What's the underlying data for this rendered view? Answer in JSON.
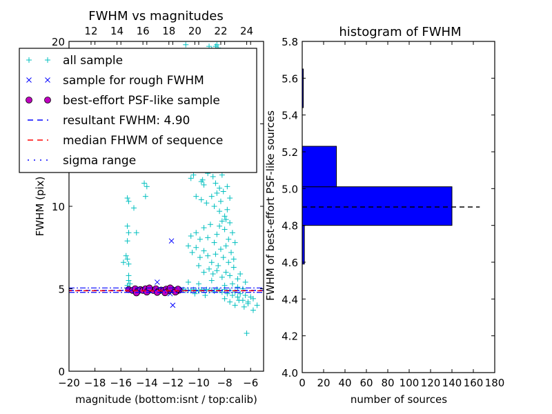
{
  "chart_data": [
    {
      "type": "scatter",
      "title": "FWHM vs magnitudes",
      "xlabel": "magnitude (bottom:isnt / top:calib)",
      "ylabel": "FWHM (pix)",
      "xlim": [
        -20,
        -5
      ],
      "ylim": [
        0,
        20
      ],
      "x_ticks": [
        -20,
        -18,
        -16,
        -14,
        -12,
        -10,
        -8,
        -6
      ],
      "x_tick_labels": [
        "−20",
        "−18",
        "−16",
        "−14",
        "−12",
        "−10",
        "−8",
        "−6"
      ],
      "y_ticks": [
        0,
        5,
        10,
        15,
        20
      ],
      "y_tick_labels": [
        "0",
        "5",
        "10",
        "",
        "20"
      ],
      "top_xlim": [
        10.3,
        25.3
      ],
      "top_x_ticks": [
        12,
        14,
        16,
        18,
        20,
        22,
        24
      ],
      "top_x_tick_labels": [
        "12",
        "14",
        "16",
        "18",
        "20",
        "22",
        "24"
      ],
      "legend_placement": "upper-left",
      "legend": [
        {
          "label": "all sample",
          "marker": "plus",
          "color": "#00bfbf"
        },
        {
          "label": "sample for rough FWHM",
          "marker": "x",
          "color": "#0000ff"
        },
        {
          "label": "best-effort PSF-like sample",
          "marker": "circle",
          "color": "#bf00bf"
        },
        {
          "label": "resultant FWHM: 4.90",
          "line": "dashed",
          "color": "#0000ff"
        },
        {
          "label": "median FHWM of sequence",
          "line": "dashed",
          "color": "#ff0000"
        },
        {
          "label": "sigma range",
          "line": "dashdot",
          "color": "#0000ff"
        }
      ],
      "resultant_fwhm": 4.9,
      "median_fwhm": 4.88,
      "sigma_range": [
        4.78,
        5.05
      ],
      "series": [
        {
          "name": "all sample",
          "points": [
            [
              -15.5,
              10.5
            ],
            [
              -15.4,
              10.3
            ],
            [
              -15.0,
              9.9
            ],
            [
              -14.2,
              11.4
            ],
            [
              -14.0,
              11.2
            ],
            [
              -14.1,
              10.6
            ],
            [
              -15.5,
              8.8
            ],
            [
              -15.4,
              8.4
            ],
            [
              -15.5,
              7.9
            ],
            [
              -14.8,
              8.4
            ],
            [
              -15.6,
              7.0
            ],
            [
              -15.5,
              6.8
            ],
            [
              -15.8,
              6.6
            ],
            [
              -15.4,
              6.5
            ],
            [
              -15.4,
              5.8
            ],
            [
              -15.4,
              5.5
            ],
            [
              -15.3,
              5.3
            ],
            [
              -15.5,
              5.2
            ],
            [
              -11.0,
              19.8
            ],
            [
              -9.2,
              19.7
            ],
            [
              -9.0,
              19.5
            ],
            [
              -8.7,
              19.7
            ],
            [
              -8.6,
              19.8
            ],
            [
              -8.5,
              19.6
            ],
            [
              -9.3,
              12.0
            ],
            [
              -10.6,
              11.7
            ],
            [
              -10.4,
              11.9
            ],
            [
              -9.8,
              11.5
            ],
            [
              -9.6,
              11.3
            ],
            [
              -9.7,
              11.6
            ],
            [
              -8.9,
              11.8
            ],
            [
              -8.7,
              11.4
            ],
            [
              -8.4,
              11.1
            ],
            [
              -8.2,
              11.9
            ],
            [
              -10.2,
              10.6
            ],
            [
              -9.8,
              10.4
            ],
            [
              -9.4,
              10.2
            ],
            [
              -9.0,
              10.6
            ],
            [
              -8.8,
              10.0
            ],
            [
              -8.6,
              10.8
            ],
            [
              -8.4,
              9.7
            ],
            [
              -8.3,
              10.3
            ],
            [
              -8.1,
              10.9
            ],
            [
              -8.0,
              9.4
            ],
            [
              -10.6,
              8.2
            ],
            [
              -10.2,
              8.4
            ],
            [
              -9.9,
              8.0
            ],
            [
              -9.6,
              8.7
            ],
            [
              -9.3,
              8.1
            ],
            [
              -9.1,
              8.9
            ],
            [
              -8.8,
              7.8
            ],
            [
              -8.6,
              8.3
            ],
            [
              -8.4,
              8.8
            ],
            [
              -8.2,
              9.1
            ],
            [
              -8.0,
              8.6
            ],
            [
              -7.9,
              9.2
            ],
            [
              -7.7,
              8.0
            ],
            [
              -10.8,
              7.6
            ],
            [
              -10.5,
              7.2
            ],
            [
              -10.2,
              7.5
            ],
            [
              -9.9,
              6.9
            ],
            [
              -9.6,
              7.3
            ],
            [
              -9.3,
              7.0
            ],
            [
              -9.0,
              6.6
            ],
            [
              -8.7,
              7.1
            ],
            [
              -8.5,
              6.4
            ],
            [
              -8.3,
              7.4
            ],
            [
              -8.1,
              6.9
            ],
            [
              -7.9,
              7.6
            ],
            [
              -7.7,
              6.6
            ],
            [
              -7.5,
              7.2
            ],
            [
              -7.3,
              6.8
            ],
            [
              -10.0,
              6.4
            ],
            [
              -9.6,
              6.0
            ],
            [
              -9.2,
              6.2
            ],
            [
              -8.9,
              5.9
            ],
            [
              -8.6,
              6.1
            ],
            [
              -8.2,
              5.7
            ],
            [
              -7.9,
              6.0
            ],
            [
              -7.6,
              5.8
            ],
            [
              -7.3,
              6.3
            ],
            [
              -7.0,
              5.6
            ],
            [
              -6.8,
              5.9
            ],
            [
              -6.4,
              5.4
            ],
            [
              -10.8,
              5.4
            ],
            [
              -10.0,
              5.3
            ],
            [
              -9.0,
              5.5
            ],
            [
              -8.0,
              5.2
            ],
            [
              -7.4,
              5.3
            ],
            [
              -7.0,
              5.1
            ],
            [
              -6.6,
              5.0
            ],
            [
              -11.2,
              4.95
            ],
            [
              -11.0,
              4.9
            ],
            [
              -10.8,
              4.92
            ],
            [
              -10.6,
              4.88
            ],
            [
              -10.4,
              4.95
            ],
            [
              -10.2,
              4.9
            ],
            [
              -10.0,
              4.86
            ],
            [
              -9.8,
              4.94
            ],
            [
              -9.6,
              4.9
            ],
            [
              -9.4,
              4.96
            ],
            [
              -9.2,
              4.88
            ],
            [
              -9.0,
              4.92
            ],
            [
              -8.8,
              4.85
            ],
            [
              -8.6,
              4.97
            ],
            [
              -8.4,
              4.9
            ],
            [
              -8.2,
              4.8
            ],
            [
              -8.0,
              4.95
            ],
            [
              -7.8,
              4.7
            ],
            [
              -7.6,
              4.9
            ],
            [
              -7.4,
              4.6
            ],
            [
              -7.2,
              4.8
            ],
            [
              -7.0,
              4.5
            ],
            [
              -6.8,
              4.7
            ],
            [
              -6.6,
              4.3
            ],
            [
              -6.4,
              4.6
            ],
            [
              -6.2,
              4.2
            ],
            [
              -6.0,
              4.5
            ],
            [
              -5.8,
              4.4
            ],
            [
              -8.0,
              4.4
            ],
            [
              -7.6,
              4.2
            ],
            [
              -7.2,
              4.0
            ],
            [
              -6.9,
              4.3
            ],
            [
              -6.5,
              3.9
            ],
            [
              -6.2,
              4.1
            ],
            [
              -9.5,
              4.6
            ],
            [
              -10.3,
              4.7
            ],
            [
              -6.3,
              2.3
            ],
            [
              -5.8,
              3.7
            ],
            [
              -5.5,
              4.0
            ],
            [
              -7.8,
              9.8
            ],
            [
              -7.6,
              9.0
            ],
            [
              -7.4,
              8.4
            ],
            [
              -7.2,
              7.8
            ],
            [
              -7.6,
              10.5
            ],
            [
              -7.8,
              11.2
            ],
            [
              -7.7,
              12.2
            ],
            [
              -8.0,
              12.8
            ],
            [
              -8.2,
              13.5
            ],
            [
              -8.4,
              14.2
            ],
            [
              -8.6,
              15.1
            ],
            [
              -8.9,
              16.0
            ]
          ]
        },
        {
          "name": "sample for rough FWHM",
          "points": [
            [
              -11.9,
              12.2
            ],
            [
              -12.1,
              7.9
            ],
            [
              -13.2,
              5.4
            ],
            [
              -12.0,
              4.0
            ],
            [
              -12.4,
              5.0
            ],
            [
              -12.2,
              4.7
            ],
            [
              -11.8,
              5.0
            ]
          ]
        },
        {
          "name": "best-effort PSF-like sample",
          "points": [
            [
              -15.4,
              4.95
            ],
            [
              -15.1,
              4.9
            ],
            [
              -14.9,
              5.0
            ],
            [
              -14.7,
              4.85
            ],
            [
              -14.5,
              4.95
            ],
            [
              -14.3,
              4.9
            ],
            [
              -14.1,
              5.0
            ],
            [
              -13.9,
              4.88
            ],
            [
              -13.7,
              4.95
            ],
            [
              -13.5,
              4.9
            ],
            [
              -13.3,
              5.0
            ],
            [
              -13.1,
              4.85
            ],
            [
              -12.9,
              4.92
            ],
            [
              -12.7,
              4.9
            ],
            [
              -12.5,
              4.98
            ],
            [
              -12.3,
              4.88
            ],
            [
              -12.1,
              4.95
            ],
            [
              -11.9,
              4.9
            ],
            [
              -11.7,
              4.85
            ],
            [
              -11.5,
              4.92
            ],
            [
              -14.8,
              4.75
            ],
            [
              -14.0,
              4.8
            ],
            [
              -13.2,
              4.78
            ],
            [
              -12.6,
              4.76
            ],
            [
              -11.8,
              4.8
            ],
            [
              -12.2,
              5.05
            ],
            [
              -13.8,
              5.05
            ],
            [
              -11.6,
              4.98
            ]
          ]
        }
      ]
    },
    {
      "type": "bar",
      "orientation": "horizontal",
      "title": "histogram of FWHM",
      "xlabel": "number of sources",
      "ylabel": "FWHM of best-effort PSF-like sources",
      "xlim": [
        0,
        180
      ],
      "ylim": [
        4.0,
        5.8
      ],
      "x_ticks": [
        0,
        20,
        40,
        60,
        80,
        100,
        120,
        140,
        160,
        180
      ],
      "x_tick_labels": [
        "0",
        "20",
        "40",
        "60",
        "80",
        "100",
        "120",
        "140",
        "160",
        "180"
      ],
      "y_ticks": [
        4.0,
        4.2,
        4.4,
        4.6,
        4.8,
        5.0,
        5.2,
        5.4,
        5.6,
        5.8
      ],
      "y_tick_labels": [
        "4.0",
        "4.2",
        "4.4",
        "4.6",
        "4.8",
        "5.0",
        "5.2",
        "5.4",
        "5.6",
        "5.8"
      ],
      "bins": [
        {
          "low": 4.59,
          "high": 4.8,
          "count": 2
        },
        {
          "low": 4.8,
          "high": 5.01,
          "count": 140
        },
        {
          "low": 5.01,
          "high": 5.23,
          "count": 32
        },
        {
          "low": 5.23,
          "high": 5.44,
          "count": 0
        },
        {
          "low": 5.44,
          "high": 5.65,
          "count": 1
        }
      ],
      "bar_color": "#0000ff",
      "reference_line": {
        "value": 4.9,
        "style": "dashed",
        "color": "#000000",
        "x_extent": [
          0,
          166
        ]
      }
    }
  ]
}
